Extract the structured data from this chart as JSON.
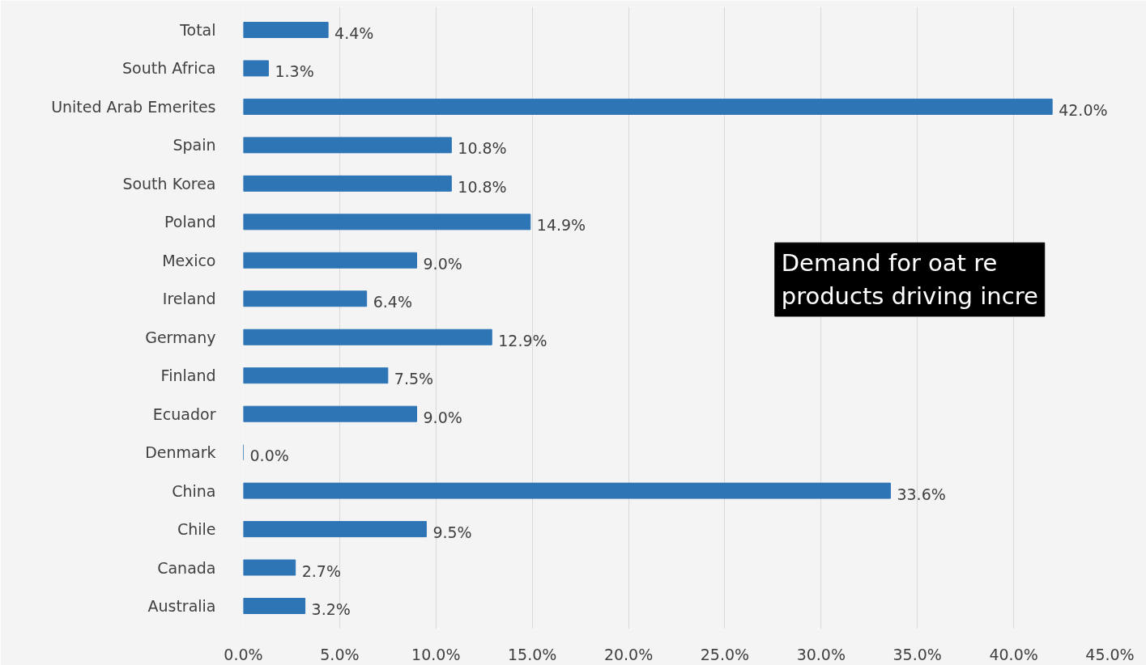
{
  "chart_data": {
    "type": "bar",
    "orientation": "horizontal",
    "categories": [
      "Total",
      "South Africa",
      "United Arab Emerites",
      "Spain",
      "South Korea",
      "Poland",
      "Mexico",
      "Ireland",
      "Germany",
      "Finland",
      "Ecuador",
      "Denmark",
      "China",
      "Chile",
      "Canada",
      "Australia"
    ],
    "values": [
      4.4,
      1.3,
      42.0,
      10.8,
      10.8,
      14.9,
      9.0,
      6.4,
      12.9,
      7.5,
      9.0,
      0.0,
      33.6,
      9.5,
      2.7,
      3.2
    ],
    "value_labels": [
      "4.4%",
      "1.3%",
      "42.0%",
      "10.8%",
      "10.8%",
      "14.9%",
      "9.0%",
      "6.4%",
      "12.9%",
      "7.5%",
      "9.0%",
      "0.0%",
      "33.6%",
      "9.5%",
      "2.7%",
      "3.2%"
    ],
    "color": "#2e75b6",
    "xlim": [
      0,
      45
    ],
    "xticks": [
      {
        "value": 0,
        "label": "0.0%"
      },
      {
        "value": 5,
        "label": "5.0%"
      },
      {
        "value": 10,
        "label": "10.0%"
      },
      {
        "value": 15,
        "label": "15.0%"
      },
      {
        "value": 20,
        "label": "20.0%"
      },
      {
        "value": 25,
        "label": "25.0%"
      },
      {
        "value": 30,
        "label": "30.0%"
      },
      {
        "value": 35,
        "label": "35.0%"
      },
      {
        "value": 40,
        "label": "40.0%"
      },
      {
        "value": 45,
        "label": "45.0%"
      }
    ],
    "grid": "x",
    "annotations": [
      "Demand for oat re\nproducts driving incre"
    ]
  }
}
